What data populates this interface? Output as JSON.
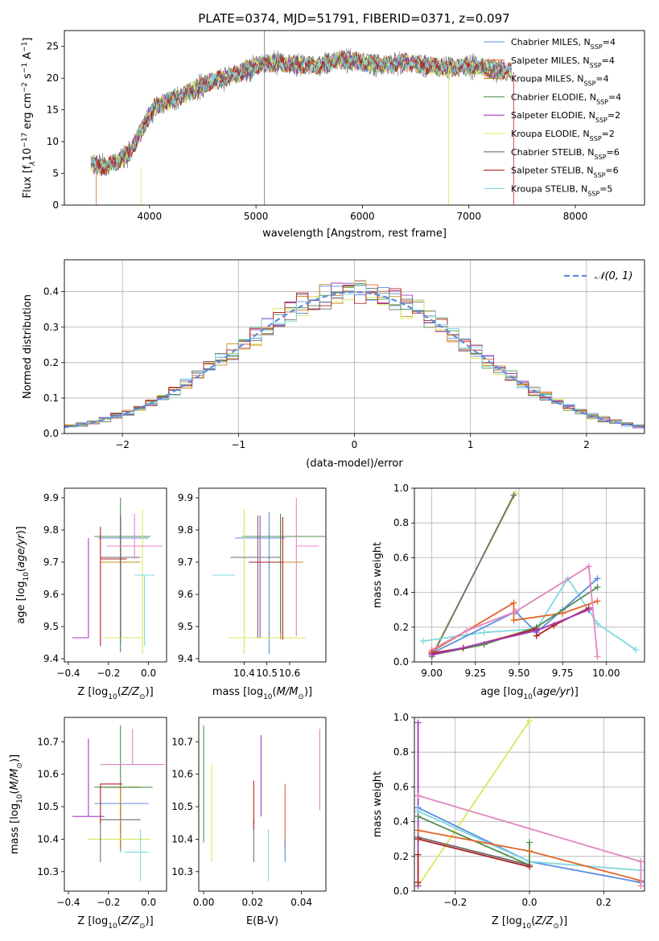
{
  "figure": {
    "title": "PLATE=0374, MJD=51791, FIBERID=0371, z=0.097"
  },
  "colors": {
    "chabrier_miles": "#5b8ee0",
    "salpeter_miles": "#e0662a",
    "kroupa_miles": "#c98a1a",
    "chabrier_elodie": "#4f8f4f",
    "salpeter_elodie": "#a53ac2",
    "kroupa_elodie": "#d8e85a",
    "chabrier_stelib": "#6e6e6e",
    "salpeter_stelib": "#b32222",
    "kroupa_stelib": "#7fd8e0",
    "pink": "#e385c0",
    "gauss": "#5b8ee0"
  },
  "chart_data": [
    {
      "type": "line",
      "id": "spectrum",
      "xlabel": "wavelength [Angstrom, rest frame]",
      "ylabel": "Flux [f$_\\lambda$10$^{-17}$ erg cm$^{-2}$ s$^{-1}$ A$^{-1}$]",
      "xlim": [
        3200,
        8650
      ],
      "ylim": [
        0,
        27.5
      ],
      "xticks": [
        4000,
        5000,
        6000,
        7000,
        8000
      ],
      "yticks": [
        0,
        5,
        10,
        15,
        20,
        25
      ],
      "continuum": {
        "x": [
          3450,
          3600,
          3800,
          3950,
          4050,
          4200,
          4400,
          4600,
          4800,
          5000,
          5200,
          5400,
          5600,
          5800,
          6000,
          6200,
          6400,
          6600,
          6800,
          7000,
          7200,
          7400
        ],
        "y": [
          6.5,
          6.0,
          8.0,
          12.5,
          15.5,
          16.5,
          18.0,
          19.5,
          20.5,
          22.0,
          22.5,
          22.0,
          22.0,
          23.0,
          22.5,
          22.0,
          22.5,
          22.0,
          21.5,
          22.0,
          21.5,
          21.0
        ]
      },
      "legend_position": "upper right",
      "series": [
        {
          "name": "Chabrier MILES, N",
          "sub": "SSP",
          "suffix": "=4"
        },
        {
          "name": "Salpeter MILES, N",
          "sub": "SSP",
          "suffix": "=4"
        },
        {
          "name": "Kroupa MILES, N",
          "sub": "SSP",
          "suffix": "=4"
        },
        {
          "name": "Chabrier ELODIE, N",
          "sub": "SSP",
          "suffix": "=4"
        },
        {
          "name": "Salpeter ELODIE, N",
          "sub": "SSP",
          "suffix": "=2"
        },
        {
          "name": "Kroupa ELODIE, N",
          "sub": "SSP",
          "suffix": "=2"
        },
        {
          "name": "Chabrier STELIB, N",
          "sub": "SSP",
          "suffix": "=6"
        },
        {
          "name": "Salpeter STELIB, N",
          "sub": "SSP",
          "suffix": "=6"
        },
        {
          "name": "Kroupa STELIB, N",
          "sub": "SSP",
          "suffix": "=5"
        }
      ]
    },
    {
      "type": "histogram",
      "id": "residuals",
      "xlabel": "(data-model)/error",
      "ylabel": "Normed distribution",
      "xlim": [
        -2.5,
        2.5
      ],
      "ylim": [
        0,
        0.49
      ],
      "xticks": [
        -2,
        -1,
        0,
        1,
        2
      ],
      "yticks": [
        0.0,
        0.1,
        0.2,
        0.3,
        0.4
      ],
      "grid": true,
      "bin_width": 0.1,
      "gaussian_label": "𝒩(0, 1)",
      "legend_position": "upper right"
    },
    {
      "type": "errorbar",
      "id": "z_age",
      "xlabel": "Z [log",
      "ylabel": "age  [log",
      "xlim": [
        -0.42,
        0.09
      ],
      "ylim": [
        9.39,
        9.93
      ],
      "xticks": [
        -0.4,
        -0.2,
        0.0
      ],
      "yticks": [
        9.4,
        9.5,
        9.6,
        9.7,
        9.8,
        9.9
      ],
      "points": [
        {
          "x": -0.14,
          "xerr": [
            0.11,
            0.14
          ],
          "y": 9.775,
          "yerr": [
            0.33,
            0.0
          ],
          "color": "chabrier_miles"
        },
        {
          "x": -0.14,
          "xerr": [
            0.1,
            0.1
          ],
          "y": 9.7,
          "yerr": [
            0.24,
            0.14
          ],
          "color": "salpeter_miles"
        },
        {
          "x": -0.14,
          "xerr": [
            0.1,
            0.1
          ],
          "y": 9.7,
          "yerr": [
            0.24,
            0.14
          ],
          "color": "kroupa_miles"
        },
        {
          "x": -0.14,
          "xerr": [
            0.13,
            0.15
          ],
          "y": 9.78,
          "yerr": [
            0.36,
            0.12
          ],
          "color": "chabrier_elodie"
        },
        {
          "x": -0.3,
          "xerr": [
            0.08,
            0.0
          ],
          "y": 9.465,
          "yerr": [
            0.0,
            0.31
          ],
          "color": "salpeter_elodie"
        },
        {
          "x": -0.03,
          "xerr": [
            0.2,
            0.0
          ],
          "y": 9.465,
          "yerr": [
            0.05,
            0.4
          ],
          "color": "kroupa_elodie"
        },
        {
          "x": -0.14,
          "xerr": [
            0.1,
            0.1
          ],
          "y": 9.715,
          "yerr": [
            0.25,
            0.13
          ],
          "color": "chabrier_stelib"
        },
        {
          "x": -0.24,
          "xerr": [
            0.0,
            0.13
          ],
          "y": 9.71,
          "yerr": [
            0.27,
            0.1
          ],
          "color": "salpeter_stelib"
        },
        {
          "x": -0.07,
          "xerr": [
            0.14,
            0.14
          ],
          "y": 9.75,
          "yerr": [
            0.04,
            0.1
          ],
          "color": "pink"
        },
        {
          "x": -0.02,
          "xerr": [
            0.05,
            0.05
          ],
          "y": 9.66,
          "yerr": [
            0.22,
            0.0
          ],
          "color": "kroupa_stelib"
        }
      ]
    },
    {
      "type": "errorbar",
      "id": "mass_age",
      "xlabel": "mass [log",
      "xlim": [
        10.2,
        10.76
      ],
      "ylim": [
        9.39,
        9.93
      ],
      "xticks": [
        10.4,
        10.5,
        10.6
      ],
      "yticks": [
        9.4,
        9.5,
        9.6,
        9.7,
        9.8,
        9.9
      ],
      "points": [
        {
          "x": 10.51,
          "xerr": [
            0.15,
            0.07
          ],
          "y": 9.775,
          "yerr": [
            0.36,
            0.08
          ],
          "color": "chabrier_miles"
        },
        {
          "x": 10.56,
          "xerr": [
            0.1,
            0.1
          ],
          "y": 9.7,
          "yerr": [
            0.24,
            0.14
          ],
          "color": "salpeter_miles"
        },
        {
          "x": 10.56,
          "xerr": [
            0.1,
            0.1
          ],
          "y": 9.7,
          "yerr": [
            0.24,
            0.14
          ],
          "color": "kroupa_miles"
        },
        {
          "x": 10.56,
          "xerr": [
            0.17,
            0.2
          ],
          "y": 9.78,
          "yerr": [
            0.3,
            0.07
          ],
          "color": "chabrier_elodie"
        },
        {
          "x": 10.47,
          "xerr": [
            0.0,
            0.2
          ],
          "y": 9.465,
          "yerr": [
            0.0,
            0.38
          ],
          "color": "salpeter_elodie"
        },
        {
          "x": 10.4,
          "xerr": [
            0.07,
            0.27
          ],
          "y": 9.465,
          "yerr": [
            0.05,
            0.4
          ],
          "color": "kroupa_elodie"
        },
        {
          "x": 10.46,
          "xerr": [
            0.12,
            0.1
          ],
          "y": 9.715,
          "yerr": [
            0.25,
            0.13
          ],
          "color": "chabrier_stelib"
        },
        {
          "x": 10.57,
          "xerr": [
            0.15,
            0.0
          ],
          "y": 9.7,
          "yerr": [
            0.24,
            0.14
          ],
          "color": "salpeter_stelib"
        },
        {
          "x": 10.63,
          "xerr": [
            0.0,
            0.1
          ],
          "y": 9.75,
          "yerr": [
            0.28,
            0.15
          ],
          "color": "pink"
        },
        {
          "x": 10.36,
          "xerr": [
            0.1,
            0.0
          ],
          "y": 9.66,
          "yerr": [
            0.0,
            0.0
          ],
          "color": "kroupa_stelib"
        }
      ]
    },
    {
      "type": "line",
      "id": "age_weight",
      "xlabel": "age  [log",
      "ylabel": "mass weight",
      "xlim": [
        8.9,
        10.22
      ],
      "ylim": [
        0,
        1.0
      ],
      "xticks": [
        9.0,
        9.25,
        9.5,
        9.75,
        10.0
      ],
      "xtick_labels": [
        "9.00",
        "9.25",
        "9.50",
        "9.75",
        "10.00"
      ],
      "yticks": [
        0.0,
        0.2,
        0.4,
        0.6,
        0.8,
        1.0
      ],
      "grid": true,
      "series": [
        {
          "color": "kroupa_elodie",
          "x": [
            9.0,
            9.48
          ],
          "y": [
            0.04,
            0.97
          ]
        },
        {
          "color": "chabrier_stelib",
          "x": [
            9.0,
            9.47
          ],
          "y": [
            0.03,
            0.96
          ]
        },
        {
          "color": "kroupa_stelib",
          "x": [
            8.95,
            9.3,
            9.6,
            9.78,
            9.95,
            10.17
          ],
          "y": [
            0.12,
            0.17,
            0.19,
            0.48,
            0.22,
            0.07
          ]
        },
        {
          "color": "chabrier_miles",
          "x": [
            9.0,
            9.48,
            9.6,
            9.75,
            9.95
          ],
          "y": [
            0.05,
            0.29,
            0.17,
            0.3,
            0.48
          ]
        },
        {
          "color": "salpeter_miles",
          "x": [
            9.0,
            9.47,
            9.47,
            9.75,
            9.95
          ],
          "y": [
            0.06,
            0.34,
            0.24,
            0.28,
            0.35
          ]
        },
        {
          "color": "chabrier_elodie",
          "x": [
            9.0,
            9.3,
            9.6,
            9.95
          ],
          "y": [
            0.04,
            0.1,
            0.2,
            0.43
          ]
        },
        {
          "color": "pink",
          "x": [
            9.0,
            9.2,
            9.48,
            9.9,
            9.95
          ],
          "y": [
            0.07,
            0.18,
            0.29,
            0.55,
            0.03
          ]
        },
        {
          "color": "salpeter_stelib",
          "x": [
            9.0,
            9.18,
            9.6,
            9.6,
            9.7,
            9.9
          ],
          "y": [
            0.05,
            0.08,
            0.19,
            0.15,
            0.21,
            0.31
          ]
        },
        {
          "color": "salpeter_elodie",
          "x": [
            9.0,
            9.6,
            9.9
          ],
          "y": [
            0.04,
            0.18,
            0.3
          ]
        }
      ]
    },
    {
      "type": "errorbar",
      "id": "z_mass",
      "xlabel": "Z [log",
      "ylabel": "mass [log",
      "xlim": [
        -0.42,
        0.09
      ],
      "ylim": [
        10.24,
        10.775
      ],
      "xticks": [
        -0.4,
        -0.2,
        0.0
      ],
      "yticks": [
        10.3,
        10.4,
        10.5,
        10.6,
        10.7
      ],
      "points": [
        {
          "x": -0.14,
          "xerr": [
            0.13,
            0.14
          ],
          "y": 10.51,
          "yerr": [
            0.15,
            0.0
          ],
          "color": "chabrier_miles"
        },
        {
          "x": -0.14,
          "xerr": [
            0.1,
            0.1
          ],
          "y": 10.56,
          "yerr": [
            0.19,
            0.0
          ],
          "color": "salpeter_miles"
        },
        {
          "x": -0.14,
          "xerr": [
            0.1,
            0.1
          ],
          "y": 10.56,
          "yerr": [
            0.19,
            0.0
          ],
          "color": "kroupa_miles"
        },
        {
          "x": -0.14,
          "xerr": [
            0.13,
            0.16
          ],
          "y": 10.56,
          "yerr": [
            0.0,
            0.19
          ],
          "color": "chabrier_elodie"
        },
        {
          "x": -0.3,
          "xerr": [
            0.08,
            0.08
          ],
          "y": 10.47,
          "yerr": [
            0.0,
            0.24
          ],
          "color": "salpeter_elodie"
        },
        {
          "x": -0.14,
          "xerr": [
            0.16,
            0.15
          ],
          "y": 10.4,
          "yerr": [
            0.0,
            0.0
          ],
          "color": "kroupa_elodie"
        },
        {
          "x": -0.24,
          "xerr": [
            0.0,
            0.2
          ],
          "y": 10.46,
          "yerr": [
            0.13,
            0.0
          ],
          "color": "chabrier_stelib"
        },
        {
          "x": -0.24,
          "xerr": [
            0.0,
            0.11
          ],
          "y": 10.57,
          "yerr": [
            0.12,
            0.0
          ],
          "color": "salpeter_stelib"
        },
        {
          "x": -0.08,
          "xerr": [
            0.16,
            0.16
          ],
          "y": 10.63,
          "yerr": [
            0.0,
            0.11
          ],
          "color": "pink"
        },
        {
          "x": -0.04,
          "xerr": [
            0.08,
            0.04
          ],
          "y": 10.36,
          "yerr": [
            0.09,
            0.07
          ],
          "color": "kroupa_stelib"
        }
      ]
    },
    {
      "type": "errorbar",
      "id": "ebv_mass",
      "xlabel": "E(B-V)",
      "xlim": [
        -0.002,
        0.05
      ],
      "ylim": [
        10.24,
        10.775
      ],
      "xticks": [
        0.0,
        0.02,
        0.04
      ],
      "xtick_labels": [
        "0.00",
        "0.02",
        "0.04"
      ],
      "yticks": [
        10.3,
        10.4,
        10.5,
        10.6,
        10.7
      ],
      "points": [
        {
          "x": 0.0,
          "y": 10.57,
          "yerr": [
            0.18,
            0.18
          ],
          "color": "chabrier_elodie"
        },
        {
          "x": 0.0033,
          "y": 10.48,
          "yerr": [
            0.15,
            0.15
          ],
          "color": "kroupa_elodie"
        },
        {
          "x": 0.0205,
          "y": 10.46,
          "yerr": [
            0.13,
            0.0
          ],
          "color": "chabrier_stelib"
        },
        {
          "x": 0.0205,
          "y": 10.5,
          "yerr": [
            0.07,
            0.08
          ],
          "color": "salpeter_stelib"
        },
        {
          "x": 0.0235,
          "y": 10.59,
          "yerr": [
            0.12,
            0.13
          ],
          "color": "salpeter_elodie"
        },
        {
          "x": 0.0265,
          "y": 10.35,
          "yerr": [
            0.08,
            0.08
          ],
          "color": "kroupa_stelib"
        },
        {
          "x": 0.0333,
          "y": 10.47,
          "yerr": [
            0.1,
            0.1
          ],
          "color": "salpeter_miles"
        },
        {
          "x": 0.0333,
          "y": 10.4,
          "yerr": [
            0.07,
            0.0
          ],
          "color": "chabrier_miles"
        },
        {
          "x": 0.0475,
          "y": 10.61,
          "yerr": [
            0.12,
            0.13
          ],
          "color": "pink"
        }
      ]
    },
    {
      "type": "line",
      "id": "z_weight",
      "xlabel": "Z [log",
      "ylabel": "mass weight",
      "xlim": [
        -0.31,
        0.31
      ],
      "ylim": [
        0,
        1.0
      ],
      "xticks": [
        -0.2,
        0.0,
        0.2
      ],
      "xtick_labels": [
        "−0.2",
        "0.0",
        "0.2"
      ],
      "yticks": [
        0.0,
        0.2,
        0.4,
        0.6,
        0.8,
        1.0
      ],
      "grid": true,
      "series": [
        {
          "color": "kroupa_elodie",
          "x": [
            -0.3,
            0.0
          ],
          "y": [
            0.03,
            0.98
          ]
        },
        {
          "color": "salpeter_elodie",
          "x": [
            -0.3,
            -0.3
          ],
          "y": [
            0.03,
            0.97
          ]
        },
        {
          "color": "pink",
          "x": [
            -0.3,
            0.3
          ],
          "y": [
            0.55,
            0.17
          ]
        },
        {
          "color": "chabrier_miles",
          "x": [
            -0.3,
            0.0,
            0.3
          ],
          "y": [
            0.48,
            0.17,
            0.05
          ]
        },
        {
          "color": "kroupa_stelib",
          "x": [
            -0.3,
            0.0,
            0.3
          ],
          "y": [
            0.46,
            0.17,
            0.12
          ]
        },
        {
          "color": "chabrier_elodie",
          "x": [
            -0.3,
            0.0,
            0.0
          ],
          "y": [
            0.43,
            0.15,
            0.28
          ]
        },
        {
          "color": "salpeter_miles",
          "x": [
            -0.3,
            0.0,
            0.3
          ],
          "y": [
            0.35,
            0.23,
            0.06
          ]
        },
        {
          "color": "chabrier_stelib",
          "x": [
            -0.3,
            0.0
          ],
          "y": [
            0.31,
            0.15
          ]
        },
        {
          "color": "salpeter_stelib",
          "x": [
            -0.3,
            0.0
          ],
          "y": [
            0.3,
            0.14
          ]
        },
        {
          "color": "salpeter_stelib",
          "x": [
            -0.3,
            -0.3
          ],
          "y": [
            0.05,
            0.21
          ]
        },
        {
          "color": "pink",
          "x": [
            0.3,
            0.3
          ],
          "y": [
            0.03,
            0.17
          ]
        }
      ]
    }
  ]
}
